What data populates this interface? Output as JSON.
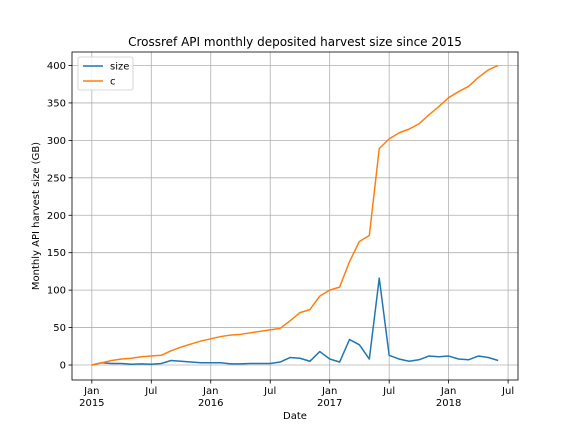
{
  "chart_data": {
    "type": "line",
    "title": "Crossref API monthly deposited harvest size since 2015",
    "xlabel": "Date",
    "ylabel": "Monthly API harvest size (GB)",
    "grid": true,
    "legend_position": "top-left",
    "xlim": [
      "2014-11",
      "2018-08"
    ],
    "ylim": [
      -20,
      418
    ],
    "y_ticks": [
      0,
      50,
      100,
      150,
      200,
      250,
      300,
      350,
      400
    ],
    "x_ticks": [
      {
        "date": "2015-01",
        "label1": "Jan",
        "label2": "2015"
      },
      {
        "date": "2015-07",
        "label1": "Jul",
        "label2": ""
      },
      {
        "date": "2016-01",
        "label1": "Jan",
        "label2": "2016"
      },
      {
        "date": "2016-07",
        "label1": "Jul",
        "label2": ""
      },
      {
        "date": "2017-01",
        "label1": "Jan",
        "label2": "2017"
      },
      {
        "date": "2017-07",
        "label1": "Jul",
        "label2": ""
      },
      {
        "date": "2018-01",
        "label1": "Jan",
        "label2": "2018"
      },
      {
        "date": "2018-07",
        "label1": "Jul",
        "label2": ""
      }
    ],
    "x": [
      "2015-01",
      "2015-02",
      "2015-03",
      "2015-04",
      "2015-05",
      "2015-06",
      "2015-07",
      "2015-08",
      "2015-09",
      "2015-10",
      "2015-11",
      "2015-12",
      "2016-01",
      "2016-02",
      "2016-03",
      "2016-04",
      "2016-05",
      "2016-06",
      "2016-07",
      "2016-08",
      "2016-09",
      "2016-10",
      "2016-11",
      "2016-12",
      "2017-01",
      "2017-02",
      "2017-03",
      "2017-04",
      "2017-05",
      "2017-06",
      "2017-07",
      "2017-08",
      "2017-09",
      "2017-10",
      "2017-11",
      "2017-12",
      "2018-01",
      "2018-02",
      "2018-03",
      "2018-04",
      "2018-05",
      "2018-06"
    ],
    "series": [
      {
        "name": "size",
        "color": "#1f77b4",
        "values": [
          0,
          3,
          2,
          2,
          1,
          1.5,
          1,
          2,
          6,
          5,
          4,
          3,
          3,
          3,
          1.5,
          1.5,
          2,
          2,
          2,
          4,
          10,
          9,
          5,
          18,
          8,
          4,
          34,
          27,
          8,
          116,
          13,
          8,
          5,
          7,
          12,
          11,
          12,
          8,
          7,
          12,
          10,
          6
        ]
      },
      {
        "name": "c",
        "color": "#ff7f0e",
        "values": [
          0,
          3,
          6,
          8,
          9,
          11,
          12,
          13,
          19,
          24,
          28,
          32,
          35,
          38,
          40,
          41,
          43,
          45,
          47,
          49,
          59,
          70,
          74,
          92,
          100,
          104,
          138,
          165,
          173,
          289,
          302,
          310,
          315,
          322,
          334,
          345,
          357,
          365,
          372,
          384,
          394,
          400
        ]
      }
    ]
  }
}
